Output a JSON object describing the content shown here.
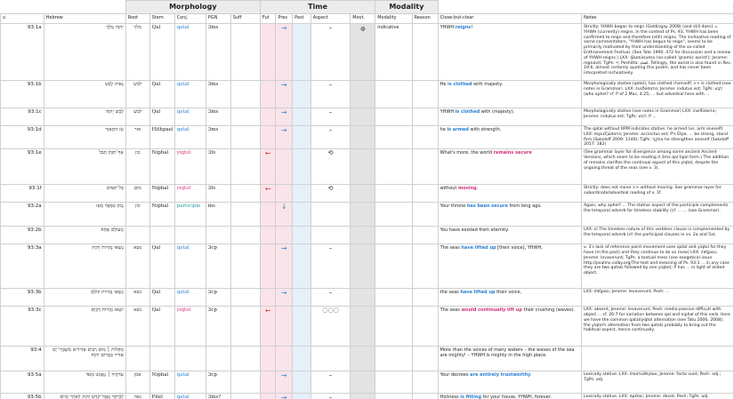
{
  "groups": {
    "morphology": "Morphology",
    "time": "Time",
    "modality": "Modality"
  },
  "headers": {
    "v": "v.",
    "hebrew": "Hebrew",
    "root": "Root",
    "stem": "Stem",
    "conj": "Conj.",
    "pgn": "PGN",
    "suff": "Suff",
    "fut": "Fut",
    "pres": "Pres",
    "past": "Past",
    "aspect": "Aspect",
    "movt": "Movt.",
    "modality": "Modality",
    "reason": "Reason",
    "close": "Close-but-clear",
    "notes": "Notes"
  },
  "rows": [
    {
      "v": "93:1a",
      "hebrew": "יְהוָה מָלָךְ",
      "root": "מלך",
      "stem": "Qal",
      "conj": "qatal",
      "conj_class": "q",
      "pgn": "3ms",
      "arrow": "→",
      "arrow_col": "pres",
      "arrow_class": "ar-r",
      "aspect": "–",
      "movt": "◍",
      "modality": "indicative",
      "close_pre": "YHWH ",
      "close_b": "reigns",
      "close_post": "!",
      "notes": "Strictly: YHWH began to reign (Goldingay 2008) (and still does) = YHWH (currently) reigns. In the context of Ps. 93, YHWH has been confirmed to reign and therefore (still) reigns. The inchoative reading of some commentators, \"YHWH has begun to reign\", seems to be primarily motivated by their understanding of the so-called Enthronement Festival. (See Tate 1990: 472 for discussion and a review of YHWH reigns.) LXX: (βασιλευσεν (so-called 'gnomic aorist'); Jerome: regnavit; TgPs: ייי; Peshitta: ܐܡܠܟ. Tellingly, the aorist is also found in Rev. 19:6, almost certainly quoting this psalm, and has never been interpreted inchoatively."
    },
    {
      "v": "93:1b",
      "hebrew": "גֵּאוּת לָבֵשׁ",
      "root": "לבשׁ",
      "stem": "Qal",
      "conj": "qatal",
      "conj_class": "q",
      "pgn": "3ms",
      "arrow": "→",
      "arrow_col": "pres",
      "arrow_class": "ar-r",
      "aspect": "–",
      "movt": "",
      "modality": "",
      "close_pre": "He ",
      "close_b": "is clothed",
      "close_post": " with majesty.",
      "notes": "Morphologically stative (qatel), has clothed (himself) >> is clothed (see notes in Grammar). LXX: ἐνεδύσατο; Jerome: indutus est; TgPs: לְבַשׁ (who aphel? cf. P of 2 Mac. 4:25; ... but adverbial here with ..."
    },
    {
      "v": "93:1c",
      "hebrew": "לָבֵשׁ יְהוָה",
      "root": "לבשׁ",
      "stem": "Qal",
      "conj": "qatal",
      "conj_class": "q",
      "pgn": "3ms",
      "arrow": "→",
      "arrow_col": "pres",
      "arrow_class": "ar-r",
      "aspect": "–",
      "movt": "",
      "modality": "",
      "close_pre": "YHWH ",
      "close_b": "is clothed",
      "close_post": " with (majesty).",
      "notes": "Morphologically stative (see notes in Grammar) LXX: ἐνεδύσατο; Jerome: indutus est; TgPs: לבש; P ..."
    },
    {
      "v": "93:1d",
      "hebrew": "עֹז הִתְאַזָּר",
      "root": "אזר",
      "stem": "Hithpael",
      "conj": "qatal",
      "conj_class": "q",
      "pgn": "3ms",
      "arrow": "→",
      "arrow_col": "pres",
      "arrow_class": "ar-r",
      "aspect": "–",
      "movt": "",
      "modality": "",
      "close_pre": "he ",
      "close_b": "is armed",
      "close_post": " with strength.",
      "notes": "The qatal without RPM indicates stative: he armed (vs. arm oneself) LXX: περιεζώσατο; Jerome: accinctus est; P's Etpa. ... be strong, stand firm (Sokoloff 2009: 1146); TgPs: אִתְקַף he strengthen oneself (Sokoloff 2017: 182)"
    },
    {
      "v": "93:1e",
      "hebrew": "אַף־תִּכּוֹן תֵּבֵל",
      "root": "כון",
      "stem": "Niphal",
      "conj": "yiqtol",
      "conj_class": "yq",
      "pgn": "3fs",
      "arrow": "←",
      "arrow_col": "fut",
      "arrow_class": "ar-l",
      "aspect": "⟲",
      "movt": "",
      "modality": "",
      "close_pre": "What's more, the world ",
      "close_b": "remains secure",
      "close_b_red": true,
      "close_post": "",
      "notes": "(See grammar layer for divergence among some ancient Ancient Versions, which seem to be reading it 3ms qal tipol form.) The addition of remains clarifies the continual aspect of this yiqtol, despite the ongoing threat of the seas (see v. 3)."
    },
    {
      "v": "93:1f",
      "hebrew": "בַּל־תִּמּוֹט׃",
      "root": "מוט",
      "stem": "Niphal",
      "conj": "yiqtol",
      "conj_class": "yq",
      "pgn": "3fs",
      "arrow": "←",
      "arrow_col": "fut",
      "arrow_class": "ar-l",
      "aspect": "⟲",
      "movt": "",
      "modality": "",
      "close_pre": "without ",
      "close_b": "moving",
      "close_b_red": true,
      "close_post": ".",
      "notes": "Strictly: does not move >> without moving. See grammar layer for subordinate/adverbial reading of v. 1f."
    },
    {
      "v": "93:2a",
      "hebrew": "נָכוֹן כִּסְאֲךָ מֵאָז",
      "root": "כון",
      "stem": "Niphal",
      "conj": "participle",
      "conj_class": "pt",
      "pgn": "ms",
      "arrow": "↓",
      "arrow_col": "pres",
      "arrow_class": "ar-d",
      "aspect": "",
      "movt": "",
      "modality": "",
      "close_pre": "Your throne ",
      "close_b": "has been secure",
      "close_post": " from long ago.",
      "notes": "Again, why aphel? ... The stative aspect of the participle complements the temporal adverb for timeless stability (cf. ... ... (see Grammar)."
    },
    {
      "v": "93:2b",
      "hebrew": "מֵעוֹלָם אָתָּה׃",
      "root": "",
      "stem": "",
      "conj": "",
      "conj_class": "",
      "pgn": "",
      "arrow": "",
      "arrow_col": "",
      "arrow_class": "",
      "aspect": "",
      "movt": "",
      "modality": "",
      "close_pre": "You have existed from eternity.",
      "close_b": "",
      "close_post": "",
      "notes": "LXX: εἶ The timeless nature of this verbless clause is complemented by the temporal adverb (cf. the participial clauses in vv. 2a and 5a)."
    },
    {
      "v": "93:3a",
      "hebrew": "נָשְׂאוּ נְהָרוֹת יְהוָה",
      "root": "נשׂא",
      "stem": "Qal",
      "conj": "qatal",
      "conj_class": "q",
      "pgn": "3cp",
      "arrow": "→",
      "arrow_col": "pres",
      "arrow_class": "ar-r",
      "aspect": "–",
      "movt": "",
      "modality": "",
      "close_pre": "The seas ",
      "close_b": "have lifted up",
      "close_post": " [their voice], YHWH,",
      "notes": "v. 3's lack of reference point movement uses qatal and yiqtol for they have (in the past) and they continue to do so (now) LXX: ἐπῆραν; Jerome: levaverunt; TgPs: a textual mess (see exegetical issue http://psalms.colby.org/The text and meaning of Ps. 93:3 ... in any case they are two qatals followed by one yiqtol); P has ... in light of elided object."
    },
    {
      "v": "93:3b",
      "hebrew": "נָשְׂאוּ נְהָרוֹת קוֹלָם",
      "root": "נשׂא",
      "stem": "Qal",
      "conj": "qatal",
      "conj_class": "q",
      "pgn": "3cp",
      "arrow": "→",
      "arrow_col": "pres",
      "arrow_class": "ar-r",
      "aspect": "–",
      "movt": "",
      "modality": "",
      "close_pre": "the seas ",
      "close_b": "have lifted up",
      "close_post": " their voice,",
      "notes": "LXX: ἐπῆραν; Jerome: levaverunt; Pesh: ..."
    },
    {
      "v": "93:3c",
      "hebrew": "יִשְׂאוּ נְהָרוֹת דָּכְיָם׃",
      "root": "נשׂא",
      "stem": "Qal",
      "conj": "yiqtol",
      "conj_class": "yq",
      "pgn": "3cp",
      "arrow": "←",
      "arrow_col": "fut",
      "arrow_class": "ar-l",
      "aspect": "◌◌◌",
      "movt": "",
      "modality": "",
      "close_pre": "The seas ",
      "close_b": "would continually lift up",
      "close_b_red": true,
      "close_post": " their crushing (waves).",
      "notes": "LXX: absent; Jerome: levaverunt; Pesh: medio-passive difficult with object ... cf. 26:7 for variation between qal and niphal of this verb. Here we have the common qatal/yiqtol alternation (see Tatu 2006, 2008); the yiqtol's alternation from two qatals probably to bring out the habitual aspect, hence continually."
    },
    {
      "v": "93:4",
      "hebrew": "מִקֹּלוֹת ׀ מַיִם רַבִּים אַדִּירִים מִשְׁבְּרֵי־יָם אַדִּיר בַּמָּרוֹם יְהוָה׃",
      "root": "",
      "stem": "",
      "conj": "",
      "conj_class": "",
      "pgn": "",
      "arrow": "",
      "arrow_col": "",
      "arrow_class": "",
      "aspect": "",
      "movt": "",
      "modality": "",
      "close_pre": "More than the voices of many waters – the waves of the sea are mighty! – YHWH is mighty in the high place.",
      "close_b": "",
      "close_post": "",
      "notes": ""
    },
    {
      "v": "93:5a",
      "hebrew": "עֵדֹתֶיךָ ׀ נֶאֶמְנוּ מְאֹד",
      "root": "אמן",
      "stem": "Niphal",
      "conj": "qatal",
      "conj_class": "q",
      "pgn": "3cp",
      "arrow": "→",
      "arrow_col": "pres",
      "arrow_class": "ar-r",
      "aspect": "–",
      "movt": "",
      "modality": "",
      "close_pre": "Your decrees ",
      "close_b": "are entirely trustworthy",
      "close_post": ".",
      "notes": "Lexically stative. LXX: ἐπιστώθησαν; Jerome: facta sunt; Pesh: adj.; TgPs: adj."
    },
    {
      "v": "93:5b",
      "hebrew": "לְבֵיתְךָ נַאֲוָה־קֹדֶשׁ יְהוָה לְאֹרֶךְ יָמִים׃",
      "root": "נאה",
      "stem": "Pilel",
      "conj": "qatal",
      "conj_class": "q",
      "pgn": "3ms?",
      "arrow": "→",
      "arrow_col": "pres",
      "arrow_class": "ar-r",
      "aspect": "–",
      "movt": "",
      "modality": "",
      "close_pre": "Holiness ",
      "close_b": "is fitting",
      "close_post": " for your house, YHWH, forever.",
      "notes": "Lexically stative. LXX: πρέπει; Jerome: decet; Pesh; TgPs: adj."
    }
  ]
}
